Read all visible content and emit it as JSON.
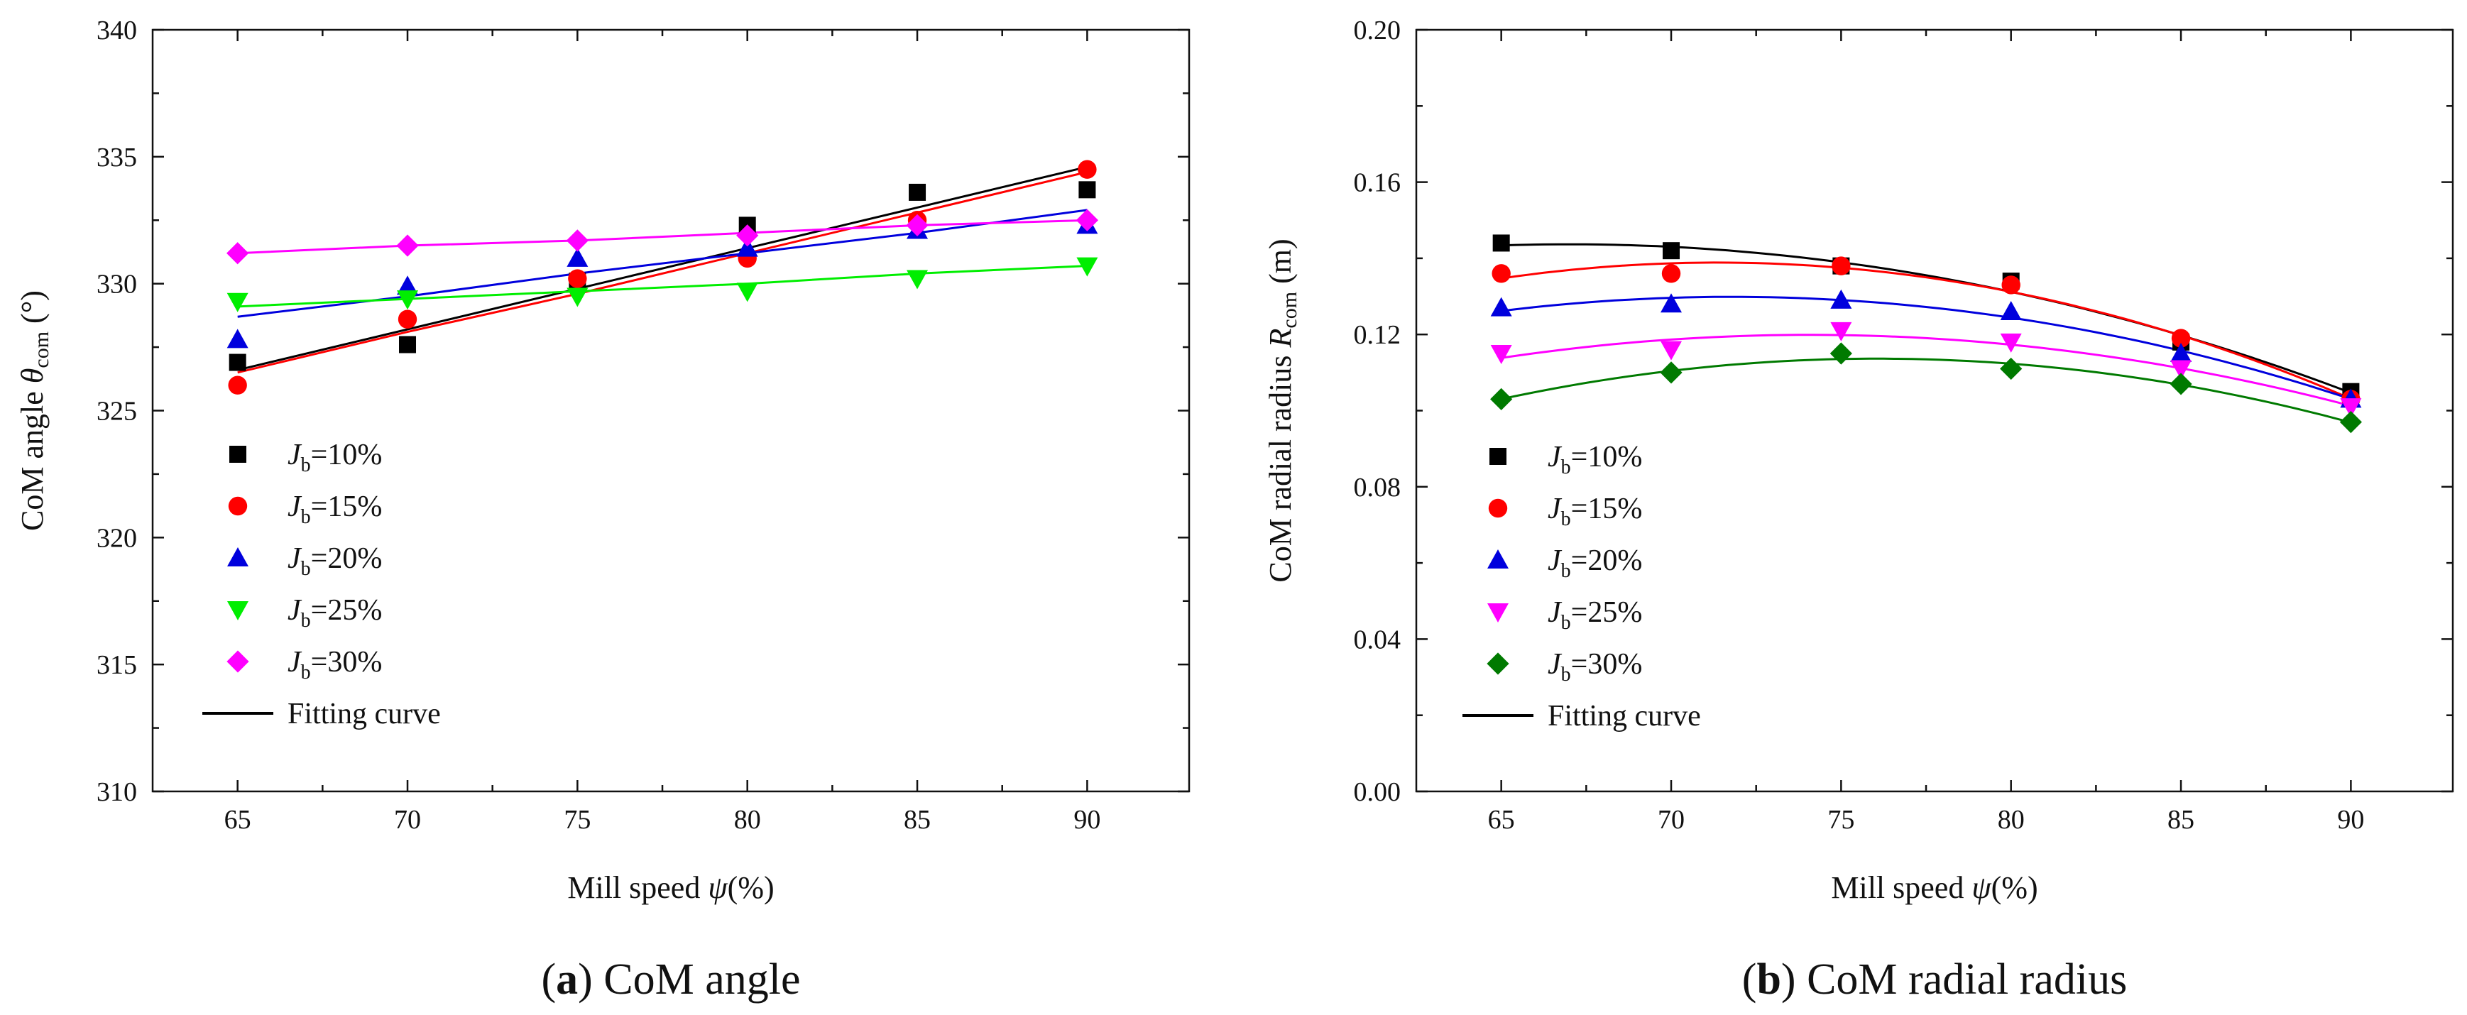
{
  "chart_data": [
    {
      "type": "scatter",
      "id": "a",
      "ylabel_prefix": "CoM angle ",
      "ylabel_symbol": "θ",
      "ylabel_sub": "com",
      "ylabel_suffix": " (°)",
      "xlabel_prefix": "Mill speed ",
      "xlabel_symbol": "ψ",
      "xlabel_suffix": "(%)",
      "caption_open": "(",
      "caption_letter": "a",
      "caption_rest": ") CoM angle",
      "xlim": [
        62.5,
        93.0
      ],
      "ylim": [
        310,
        340
      ],
      "xticks": [
        65,
        70,
        75,
        80,
        85,
        90
      ],
      "xtick_labels": [
        "65",
        "70",
        "75",
        "80",
        "85",
        "90"
      ],
      "yticks": [
        310,
        315,
        320,
        325,
        330,
        335,
        340
      ],
      "ytick_labels": [
        "310",
        "315",
        "320",
        "325",
        "330",
        "335",
        "340"
      ],
      "x": [
        65,
        70,
        75,
        80,
        85,
        90
      ],
      "series": [
        {
          "name": "Jb=10%",
          "label_main": "J",
          "label_sub": "b",
          "label_rest": "=10%",
          "marker": "square",
          "color": "#000000",
          "values": [
            326.9,
            327.6,
            330.1,
            332.3,
            333.6,
            333.7
          ],
          "fit": [
            326.6,
            328.2,
            329.8,
            331.4,
            333.0,
            334.6
          ]
        },
        {
          "name": "Jb=15%",
          "label_main": "J",
          "label_sub": "b",
          "label_rest": "=15%",
          "marker": "circle",
          "color": "#ff0000",
          "values": [
            326.0,
            328.6,
            330.2,
            331.0,
            332.5,
            334.5
          ],
          "fit": [
            326.5,
            328.1,
            329.6,
            331.2,
            332.8,
            334.4
          ]
        },
        {
          "name": "Jb=20%",
          "label_main": "J",
          "label_sub": "b",
          "label_rest": "=20%",
          "marker": "triangle-up",
          "color": "#0000dd",
          "values": [
            327.8,
            329.9,
            331.0,
            331.4,
            332.1,
            332.3
          ],
          "fit": [
            328.7,
            329.5,
            330.4,
            331.2,
            332.0,
            332.9
          ]
        },
        {
          "name": "Jb=25%",
          "label_main": "J",
          "label_sub": "b",
          "label_rest": "=25%",
          "marker": "triangle-down",
          "color": "#00ee00",
          "values": [
            329.3,
            329.4,
            329.5,
            329.7,
            330.2,
            330.7
          ],
          "fit": [
            329.1,
            329.4,
            329.7,
            330.0,
            330.4,
            330.7
          ]
        },
        {
          "name": "Jb=30%",
          "label_main": "J",
          "label_sub": "b",
          "label_rest": "=30%",
          "marker": "diamond",
          "color": "#ff00ff",
          "values": [
            331.2,
            331.5,
            331.7,
            331.9,
            332.3,
            332.5
          ],
          "fit": [
            331.2,
            331.5,
            331.7,
            332.0,
            332.3,
            332.5
          ]
        }
      ],
      "legend_fit_label": "Fitting curve",
      "fit_line_color": "#000000"
    },
    {
      "type": "scatter",
      "id": "b",
      "ylabel_prefix": "CoM radial radius ",
      "ylabel_symbol": "R",
      "ylabel_sub": "com",
      "ylabel_suffix": " (m)",
      "xlabel_prefix": "Mill speed ",
      "xlabel_symbol": "ψ",
      "xlabel_suffix": "(%)",
      "caption_open": "(",
      "caption_letter": "b",
      "caption_rest": ") CoM radial radius",
      "xlim": [
        62.5,
        93.0
      ],
      "ylim": [
        0.0,
        0.2
      ],
      "xticks": [
        65,
        70,
        75,
        80,
        85,
        90
      ],
      "xtick_labels": [
        "65",
        "70",
        "75",
        "80",
        "85",
        "90"
      ],
      "yticks": [
        0.0,
        0.04,
        0.08,
        0.12,
        0.16,
        0.2
      ],
      "ytick_labels": [
        "0.00",
        "0.04",
        "0.08",
        "0.12",
        "0.16",
        "0.20"
      ],
      "x": [
        65,
        70,
        75,
        80,
        85,
        90
      ],
      "series": [
        {
          "name": "Jb=10%",
          "label_main": "J",
          "label_sub": "b",
          "label_rest": "=10%",
          "marker": "square",
          "color": "#000000",
          "values": [
            0.144,
            0.142,
            0.138,
            0.134,
            0.118,
            0.105
          ]
        },
        {
          "name": "Jb=15%",
          "label_main": "J",
          "label_sub": "b",
          "label_rest": "=15%",
          "marker": "circle",
          "color": "#ff0000",
          "values": [
            0.136,
            0.136,
            0.138,
            0.133,
            0.119,
            0.103
          ]
        },
        {
          "name": "Jb=20%",
          "label_main": "J",
          "label_sub": "b",
          "label_rest": "=20%",
          "marker": "triangle-up",
          "color": "#0000dd",
          "values": [
            0.127,
            0.128,
            0.129,
            0.126,
            0.115,
            0.103
          ]
        },
        {
          "name": "Jb=25%",
          "label_main": "J",
          "label_sub": "b",
          "label_rest": "=25%",
          "marker": "triangle-down",
          "color": "#ff00ff",
          "values": [
            0.115,
            0.116,
            0.121,
            0.118,
            0.111,
            0.101
          ]
        },
        {
          "name": "Jb=30%",
          "label_main": "J",
          "label_sub": "b",
          "label_rest": "=30%",
          "marker": "diamond",
          "color": "#007a00",
          "values": [
            0.103,
            0.11,
            0.115,
            0.111,
            0.107,
            0.097
          ]
        }
      ],
      "legend_fit_label": "Fitting curve",
      "fit_line_color": "#000000"
    }
  ]
}
